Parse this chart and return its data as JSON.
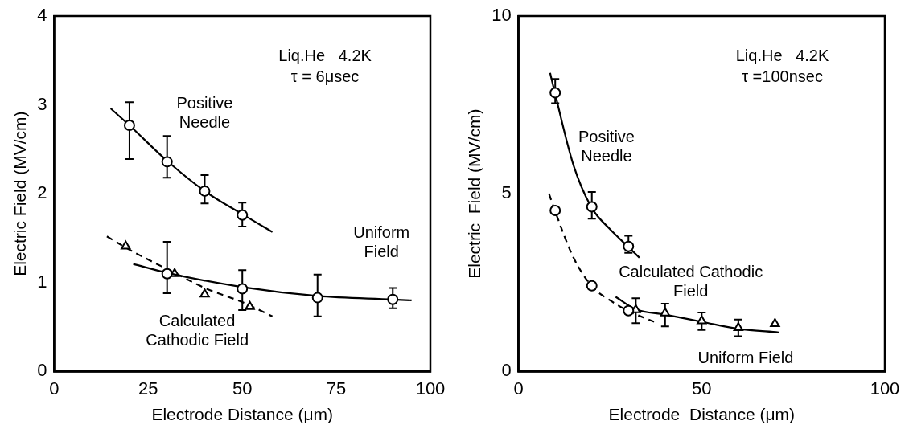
{
  "chart_data": [
    {
      "type": "scatter",
      "xlabel": "Electrode Distance (μm)",
      "ylabel": "Electric Field (MV/cm)",
      "annotations": [
        "Liq.He   4.2K",
        "τ = 6μsec"
      ],
      "xlim": [
        0,
        100
      ],
      "xticks": [
        0,
        25,
        50,
        75,
        100
      ],
      "ylim": [
        0,
        4
      ],
      "yticks": [
        0,
        1,
        2,
        3,
        4
      ],
      "grid": false,
      "legend": false,
      "series": [
        {
          "name": "Positive\nNeedle",
          "type": "scatter",
          "marker": "circle",
          "color": "#000000",
          "x": [
            20,
            30,
            40,
            50
          ],
          "values": [
            2.77,
            2.36,
            2.03,
            1.76
          ],
          "errors": [
            [
              2.39,
              3.03
            ],
            [
              2.18,
              2.65
            ],
            [
              1.89,
              2.21
            ],
            [
              1.63,
              1.9
            ]
          ]
        },
        {
          "type": "line",
          "line_style": "solid",
          "color": "#000000",
          "x": [
            15,
            20,
            30,
            40,
            50,
            58
          ],
          "values": [
            2.96,
            2.77,
            2.37,
            2.03,
            1.77,
            1.57
          ]
        },
        {
          "name": "Uniform\nField",
          "type": "scatter",
          "marker": "circle",
          "color": "#000000",
          "x": [
            30,
            50,
            70,
            90
          ],
          "values": [
            1.1,
            0.93,
            0.83,
            0.81
          ],
          "errors": [
            [
              0.88,
              1.46
            ],
            [
              0.69,
              1.14
            ],
            [
              0.62,
              1.09
            ],
            [
              0.71,
              0.94
            ]
          ]
        },
        {
          "type": "line",
          "line_style": "solid",
          "color": "#000000",
          "x": [
            21,
            30,
            50,
            70,
            90,
            95
          ],
          "values": [
            1.21,
            1.11,
            0.95,
            0.85,
            0.81,
            0.8
          ]
        },
        {
          "name": "Calculated\nCathodic Field",
          "type": "scatter",
          "marker": "triangle",
          "color": "#000000",
          "x": [
            19,
            32,
            40,
            52
          ],
          "values": [
            1.41,
            1.1,
            0.87,
            0.73
          ]
        },
        {
          "type": "line",
          "line_style": "dashed",
          "color": "#000000",
          "x": [
            14,
            20,
            32,
            40,
            50,
            58
          ],
          "values": [
            1.52,
            1.37,
            1.11,
            0.94,
            0.78,
            0.62
          ]
        }
      ]
    },
    {
      "type": "scatter",
      "xlabel": "Electrode  Distance (μm)",
      "ylabel": "Electric  Field (MV/cm)",
      "annotations": [
        "Liq.He   4.2K",
        "τ =100nsec"
      ],
      "xlim": [
        0,
        100
      ],
      "xticks": [
        0,
        50,
        100
      ],
      "ylim": [
        0,
        10
      ],
      "yticks": [
        0,
        5,
        10
      ],
      "grid": false,
      "legend": false,
      "series": [
        {
          "name": "Positive\nNeedle",
          "type": "scatter",
          "marker": "circle",
          "color": "#000000",
          "x": [
            10,
            20,
            30
          ],
          "values": [
            7.84,
            4.63,
            3.52
          ],
          "errors": [
            [
              7.55,
              8.23
            ],
            [
              4.3,
              5.05
            ],
            [
              3.34,
              3.82
            ]
          ]
        },
        {
          "type": "line",
          "line_style": "solid",
          "color": "#000000",
          "x": [
            8.6,
            10,
            15,
            20,
            25,
            30,
            33
          ],
          "values": [
            8.4,
            7.8,
            5.8,
            4.6,
            4.0,
            3.5,
            3.2
          ]
        },
        {
          "name": "Calculated Cathodic\nField",
          "type": "scatter",
          "marker": "circle",
          "color": "#000000",
          "x": [
            10,
            20,
            30
          ],
          "values": [
            4.53,
            2.41,
            1.71
          ]
        },
        {
          "type": "line",
          "line_style": "dashed",
          "color": "#000000",
          "x": [
            8.3,
            10,
            15,
            20,
            25,
            30,
            37
          ],
          "values": [
            5.0,
            4.5,
            3.2,
            2.4,
            2.0,
            1.7,
            1.4
          ]
        },
        {
          "name": "Uniform Field",
          "type": "scatter",
          "marker": "triangle",
          "color": "#000000",
          "x": [
            32,
            40,
            50,
            60,
            70
          ],
          "values": [
            1.73,
            1.64,
            1.42,
            1.23,
            1.34
          ],
          "errors": [
            [
              1.36,
              2.06
            ],
            [
              1.27,
              1.91
            ],
            [
              1.17,
              1.66
            ],
            [
              0.99,
              1.46
            ],
            null
          ]
        },
        {
          "type": "line",
          "line_style": "solid",
          "color": "#000000",
          "x": [
            26.5,
            32,
            40,
            50,
            60,
            71
          ],
          "values": [
            2.1,
            1.75,
            1.6,
            1.4,
            1.2,
            1.1
          ]
        }
      ]
    }
  ]
}
